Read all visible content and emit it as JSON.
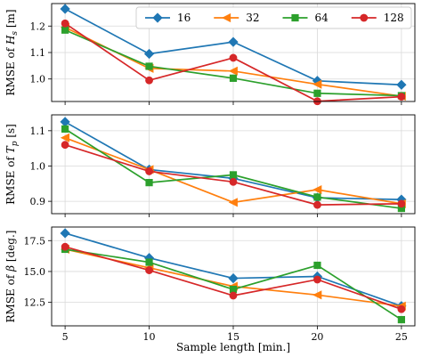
{
  "chart_data": {
    "type": "line",
    "x": [
      5,
      10,
      15,
      20,
      25
    ],
    "xticks": [
      "5",
      "10",
      "15",
      "20",
      "25"
    ],
    "xlabel": "Sample length [min.]",
    "xlim": [
      4.2,
      25.8
    ],
    "grid": true,
    "legend_position": "top-right",
    "legend": [
      {
        "name": "16",
        "color": "#1f77b4",
        "marker": "diamond"
      },
      {
        "name": "32",
        "color": "#ff7f0e",
        "marker": "triangle-left"
      },
      {
        "name": "64",
        "color": "#2ca02c",
        "marker": "square"
      },
      {
        "name": "128",
        "color": "#d62728",
        "marker": "circle"
      }
    ],
    "panels": [
      {
        "ylabel_prefix": "RMSE of ",
        "ylabel_symbol": "H",
        "ylabel_sub": "s",
        "ylabel_unit": " [m]",
        "ylim": [
          0.915,
          1.285
        ],
        "yticks": [
          1.0,
          1.1,
          1.2
        ],
        "ytick_labels": [
          "1.0",
          "1.1",
          "1.2"
        ],
        "series": [
          {
            "name": "16",
            "values": [
              1.265,
              1.095,
              1.14,
              0.993,
              0.978
            ]
          },
          {
            "name": "32",
            "values": [
              1.195,
              1.04,
              1.03,
              0.98,
              0.935
            ]
          },
          {
            "name": "64",
            "values": [
              1.185,
              1.048,
              1.003,
              0.946,
              0.937
            ]
          },
          {
            "name": "128",
            "values": [
              1.21,
              0.995,
              1.08,
              0.916,
              0.933
            ]
          }
        ]
      },
      {
        "ylabel_prefix": "RMSE of ",
        "ylabel_symbol": "T",
        "ylabel_sub": "p",
        "ylabel_unit": " [s]",
        "ylim": [
          0.865,
          1.145
        ],
        "yticks": [
          0.9,
          1.0,
          1.1
        ],
        "ytick_labels": [
          "0.9",
          "1.0",
          "1.1"
        ],
        "series": [
          {
            "name": "16",
            "values": [
              1.125,
              0.99,
              0.965,
              0.91,
              0.905
            ]
          },
          {
            "name": "32",
            "values": [
              1.08,
              0.99,
              0.897,
              0.933,
              0.893
            ]
          },
          {
            "name": "64",
            "values": [
              1.105,
              0.953,
              0.975,
              0.912,
              0.88
            ]
          },
          {
            "name": "128",
            "values": [
              1.06,
              0.985,
              0.955,
              0.89,
              0.893
            ]
          }
        ]
      },
      {
        "ylabel_prefix": "RMSE of ",
        "ylabel_symbol": "β",
        "ylabel_sub": "",
        "ylabel_unit": " [deg.]",
        "ylim": [
          10.6,
          18.6
        ],
        "yticks": [
          12.5,
          15.0,
          17.5
        ],
        "ytick_labels": [
          "12.5",
          "15.0",
          "17.5"
        ],
        "series": [
          {
            "name": "16",
            "values": [
              18.1,
              16.1,
              14.45,
              14.6,
              12.2
            ]
          },
          {
            "name": "32",
            "values": [
              16.8,
              15.3,
              13.8,
              13.1,
              12.2
            ]
          },
          {
            "name": "64",
            "values": [
              16.8,
              15.75,
              13.55,
              15.5,
              11.1
            ]
          },
          {
            "name": "128",
            "values": [
              17.0,
              15.1,
              13.05,
              14.35,
              11.95
            ]
          }
        ]
      }
    ]
  }
}
